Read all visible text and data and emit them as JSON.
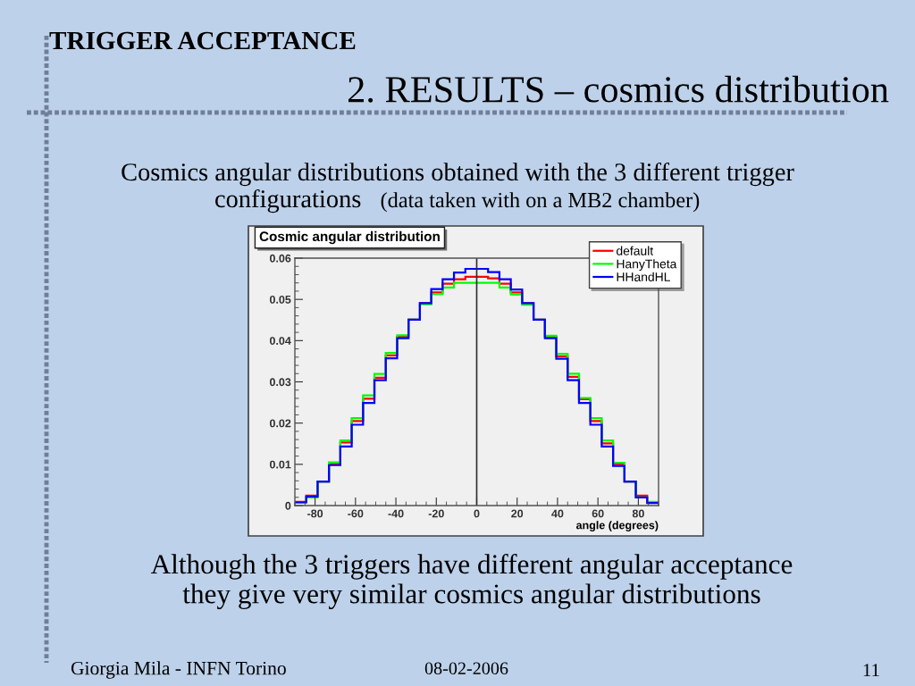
{
  "chart_data": {
    "type": "histogram",
    "title": "Cosmic angular distribution",
    "xlabel": "angle (degrees)",
    "annotations": [
      "TRIGGER ACCEPTANCE",
      "2. RESULTS – cosmics distribution",
      "Cosmics angular distributions obtained with the 3 different trigger",
      "configurations",
      "(data taken with on a MB2 chamber)",
      "Although the 3 triggers have different angular acceptance\nthey give very similar cosmics angular distributions",
      "Giorgia Mila - INFN Torino",
      "08-02-2006",
      "11"
    ],
    "bins": [
      -90,
      -84.375,
      -78.75,
      -73.125,
      -67.5,
      -61.875,
      -56.25,
      -50.625,
      -45,
      -39.375,
      -33.75,
      -28.125,
      -22.5,
      -16.875,
      -11.25,
      -5.625,
      0,
      5.625,
      11.25,
      16.875,
      22.5,
      28.125,
      33.75,
      39.375,
      45,
      50.625,
      56.25,
      61.875,
      67.5,
      73.125,
      78.75,
      84.375,
      90
    ],
    "series": [
      {
        "name": "default",
        "color": "#ff0000",
        "values": [
          0.0009,
          0.0024,
          0.0058,
          0.0101,
          0.0153,
          0.0205,
          0.0259,
          0.031,
          0.0364,
          0.0409,
          0.0451,
          0.0491,
          0.0517,
          0.0538,
          0.0549,
          0.0555,
          0.0555,
          0.0551,
          0.0538,
          0.0517,
          0.0491,
          0.0451,
          0.0409,
          0.0362,
          0.0312,
          0.0258,
          0.0205,
          0.0151,
          0.0101,
          0.0058,
          0.0024,
          0.0007
        ]
      },
      {
        "name": "HanyTheta",
        "color": "#00ff00",
        "values": [
          0.0008,
          0.002,
          0.0058,
          0.0105,
          0.0158,
          0.0212,
          0.0267,
          0.0319,
          0.037,
          0.0413,
          0.0451,
          0.0488,
          0.0513,
          0.0529,
          0.054,
          0.054,
          0.054,
          0.054,
          0.0529,
          0.0512,
          0.0487,
          0.0451,
          0.0412,
          0.0368,
          0.032,
          0.0261,
          0.0212,
          0.0158,
          0.0104,
          0.0058,
          0.002,
          0.0009
        ]
      },
      {
        "name": "HHandHL",
        "color": "#0000ff",
        "values": [
          0.0008,
          0.0022,
          0.0058,
          0.0098,
          0.0143,
          0.0196,
          0.0249,
          0.0304,
          0.0357,
          0.0406,
          0.0451,
          0.0491,
          0.0525,
          0.0549,
          0.0565,
          0.0574,
          0.0574,
          0.0566,
          0.0549,
          0.0524,
          0.0491,
          0.0451,
          0.0406,
          0.0356,
          0.0304,
          0.0249,
          0.0196,
          0.0143,
          0.0096,
          0.0058,
          0.002,
          0.0006
        ]
      }
    ],
    "xlim": [
      -90,
      90
    ],
    "xticks": [
      -80,
      -60,
      -40,
      -20,
      0,
      20,
      40,
      60,
      80
    ],
    "ylim": [
      0,
      0.06
    ],
    "yticks": [
      0,
      0.01,
      0.02,
      0.03,
      0.04,
      0.05,
      0.06
    ],
    "ref_lines": [
      {
        "axis": "x",
        "value": 0,
        "color": "#303030"
      }
    ],
    "legend": "top right"
  }
}
